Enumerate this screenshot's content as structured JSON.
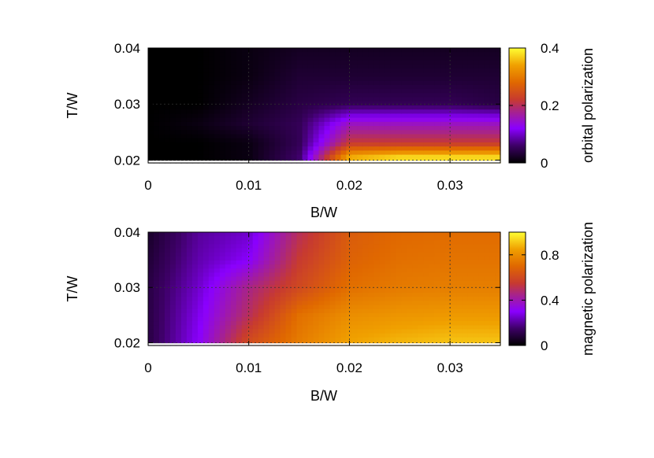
{
  "chart_data": [
    {
      "type": "heatmap",
      "xlabel": "B/W",
      "ylabel": "T/W",
      "x_ticks": [
        "0",
        "0.01",
        "0.02",
        "0.03"
      ],
      "y_ticks": [
        "0.02",
        "0.03",
        "0.04"
      ],
      "xlim": [
        0,
        0.035
      ],
      "ylim": [
        0.0195,
        0.04
      ],
      "grid": true,
      "colorbar": {
        "title": "orbital polarization",
        "ticks": [
          "0",
          "0.2",
          "0.4"
        ],
        "range": [
          0,
          0.4
        ],
        "colormap": [
          "#000000",
          "#5a0099",
          "#a31dff",
          "#c23a5c",
          "#d74a00",
          "#ed8c00",
          "#f5b300",
          "#ffff33"
        ]
      },
      "values_note_rows_low_to_high_T": [
        {
          "T": 0.0205,
          "values": [
            0.0,
            0.0,
            0.01,
            0.06,
            0.35,
            0.38,
            0.38,
            0.38
          ]
        },
        {
          "T": 0.023,
          "values": [
            0.0,
            0.0,
            0.01,
            0.05,
            0.22,
            0.22,
            0.22,
            0.22
          ]
        },
        {
          "T": 0.0265,
          "values": [
            0.0,
            0.01,
            0.03,
            0.05,
            0.15,
            0.15,
            0.15,
            0.15
          ]
        },
        {
          "T": 0.03,
          "values": [
            0.0,
            0.0,
            0.02,
            0.04,
            0.05,
            0.05,
            0.05,
            0.04
          ]
        },
        {
          "T": 0.035,
          "values": [
            0.0,
            0.0,
            0.01,
            0.03,
            0.03,
            0.03,
            0.03,
            0.03
          ]
        },
        {
          "T": 0.04,
          "values": [
            0.0,
            0.0,
            0.01,
            0.02,
            0.02,
            0.02,
            0.02,
            0.02
          ]
        }
      ],
      "x_values": [
        0.0,
        0.005,
        0.01,
        0.015,
        0.02,
        0.025,
        0.03,
        0.035
      ]
    },
    {
      "type": "heatmap",
      "xlabel": "B/W",
      "ylabel": "T/W",
      "x_ticks": [
        "0",
        "0.01",
        "0.02",
        "0.03"
      ],
      "y_ticks": [
        "0.02",
        "0.03",
        "0.04"
      ],
      "xlim": [
        0,
        0.035
      ],
      "ylim": [
        0.0195,
        0.04
      ],
      "grid": true,
      "colorbar": {
        "title": "magnetic polarization",
        "ticks": [
          "0",
          "0.4",
          "0.8"
        ],
        "range": [
          0,
          1.0
        ],
        "colormap": [
          "#000000",
          "#5a0099",
          "#a31dff",
          "#c23a5c",
          "#d74a00",
          "#ed8c00",
          "#f5b300",
          "#ffff33"
        ]
      },
      "values_note_rows_low_to_high_T": [
        {
          "T": 0.0205,
          "values": [
            0.1,
            0.3,
            0.6,
            0.75,
            0.85,
            0.88,
            0.9,
            0.9
          ]
        },
        {
          "T": 0.025,
          "values": [
            0.1,
            0.28,
            0.5,
            0.72,
            0.8,
            0.82,
            0.83,
            0.83
          ]
        },
        {
          "T": 0.03,
          "values": [
            0.1,
            0.25,
            0.45,
            0.6,
            0.72,
            0.75,
            0.76,
            0.76
          ]
        },
        {
          "T": 0.035,
          "values": [
            0.08,
            0.22,
            0.3,
            0.55,
            0.68,
            0.72,
            0.73,
            0.73
          ]
        },
        {
          "T": 0.04,
          "values": [
            0.06,
            0.2,
            0.25,
            0.5,
            0.66,
            0.7,
            0.71,
            0.71
          ]
        }
      ],
      "x_values": [
        0.0,
        0.005,
        0.01,
        0.015,
        0.02,
        0.025,
        0.03,
        0.035
      ]
    }
  ]
}
